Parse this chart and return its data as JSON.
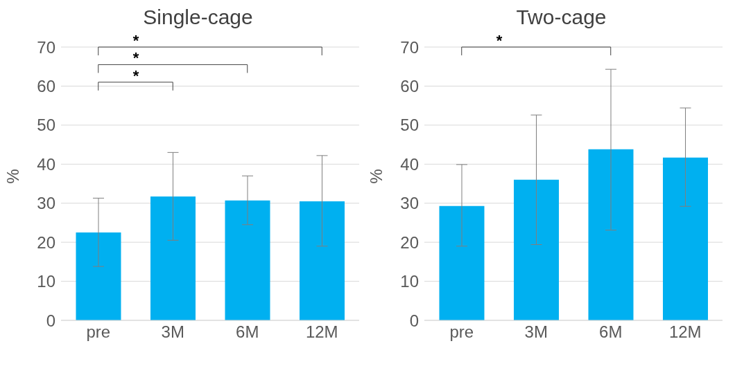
{
  "chart_data": [
    {
      "type": "bar",
      "title": "Single-cage",
      "ylabel": "%",
      "categories": [
        "pre",
        "3M",
        "6M",
        "12M"
      ],
      "values": [
        22.5,
        31.7,
        30.7,
        30.5
      ],
      "errors": [
        [
          13.8,
          31.3
        ],
        [
          20.5,
          43
        ],
        [
          24.5,
          37
        ],
        [
          19,
          42.2
        ]
      ],
      "color": "#00b0f0",
      "ylim": [
        0,
        70
      ],
      "yticks": [
        0,
        10,
        20,
        30,
        40,
        50,
        60,
        70
      ],
      "grid": "y",
      "annotations": [
        "*",
        "*",
        "*"
      ]
    },
    {
      "type": "bar",
      "title": "Two-cage",
      "ylabel": "%",
      "categories": [
        "pre",
        "3M",
        "6M",
        "12M"
      ],
      "values": [
        29.3,
        36,
        43.8,
        41.7
      ],
      "errors": [
        [
          19,
          39.9
        ],
        [
          19.4,
          52.6
        ],
        [
          23.1,
          64.3
        ],
        [
          29.2,
          54.4
        ]
      ],
      "color": "#00b0f0",
      "ylim": [
        0,
        70
      ],
      "yticks": [
        0,
        10,
        20,
        30,
        40,
        50,
        60,
        70
      ],
      "grid": "y",
      "annotations": [
        "*"
      ]
    }
  ]
}
